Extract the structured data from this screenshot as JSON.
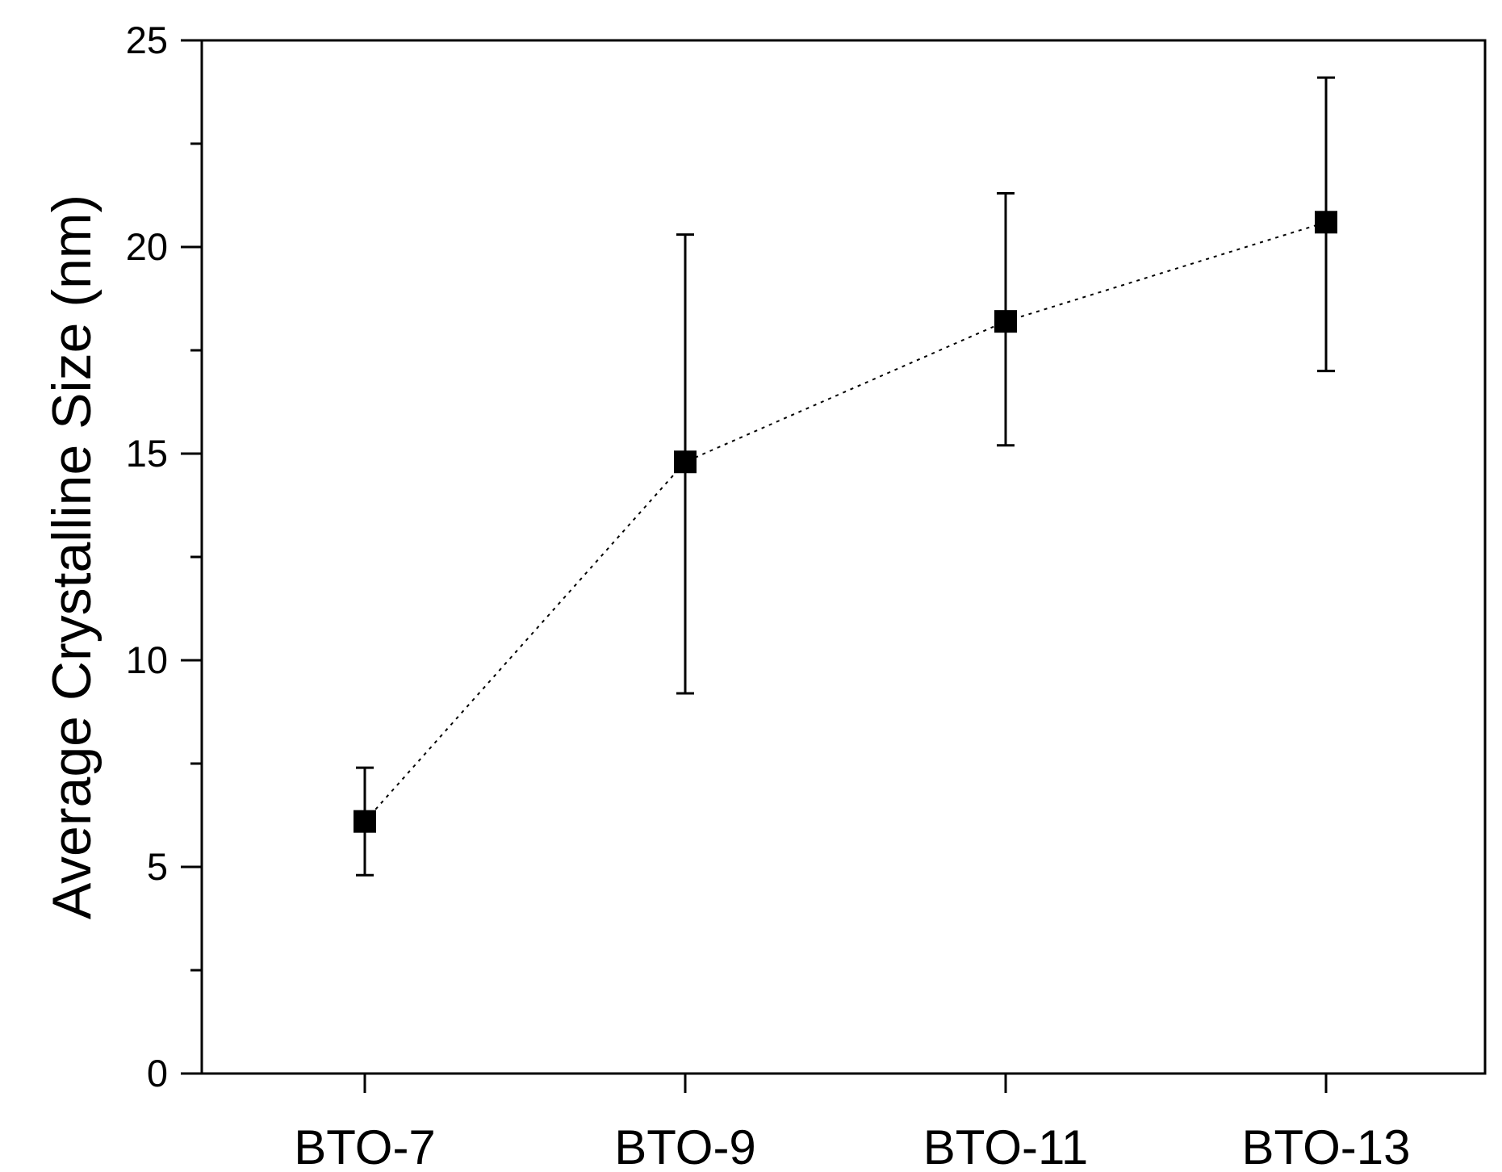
{
  "chart_data": {
    "type": "scatter",
    "categories": [
      "BTO-7",
      "BTO-9",
      "BTO-11",
      "BTO-13"
    ],
    "series": [
      {
        "values": [
          6.1,
          14.8,
          18.2,
          20.6
        ],
        "error_low": [
          4.8,
          9.2,
          15.2,
          17.0
        ],
        "error_high": [
          7.4,
          20.3,
          21.3,
          24.1
        ],
        "marker": "filled-square",
        "line": "dotted",
        "color": "#000000"
      }
    ],
    "title": "",
    "xlabel": "",
    "ylabel": "Average Crystalline Size (nm)",
    "ylim": [
      0,
      25
    ],
    "yticks": [
      "0",
      "5",
      "10",
      "15",
      "20",
      "25"
    ],
    "y_minor_step": 2.5,
    "grid": false,
    "legend": "none"
  }
}
